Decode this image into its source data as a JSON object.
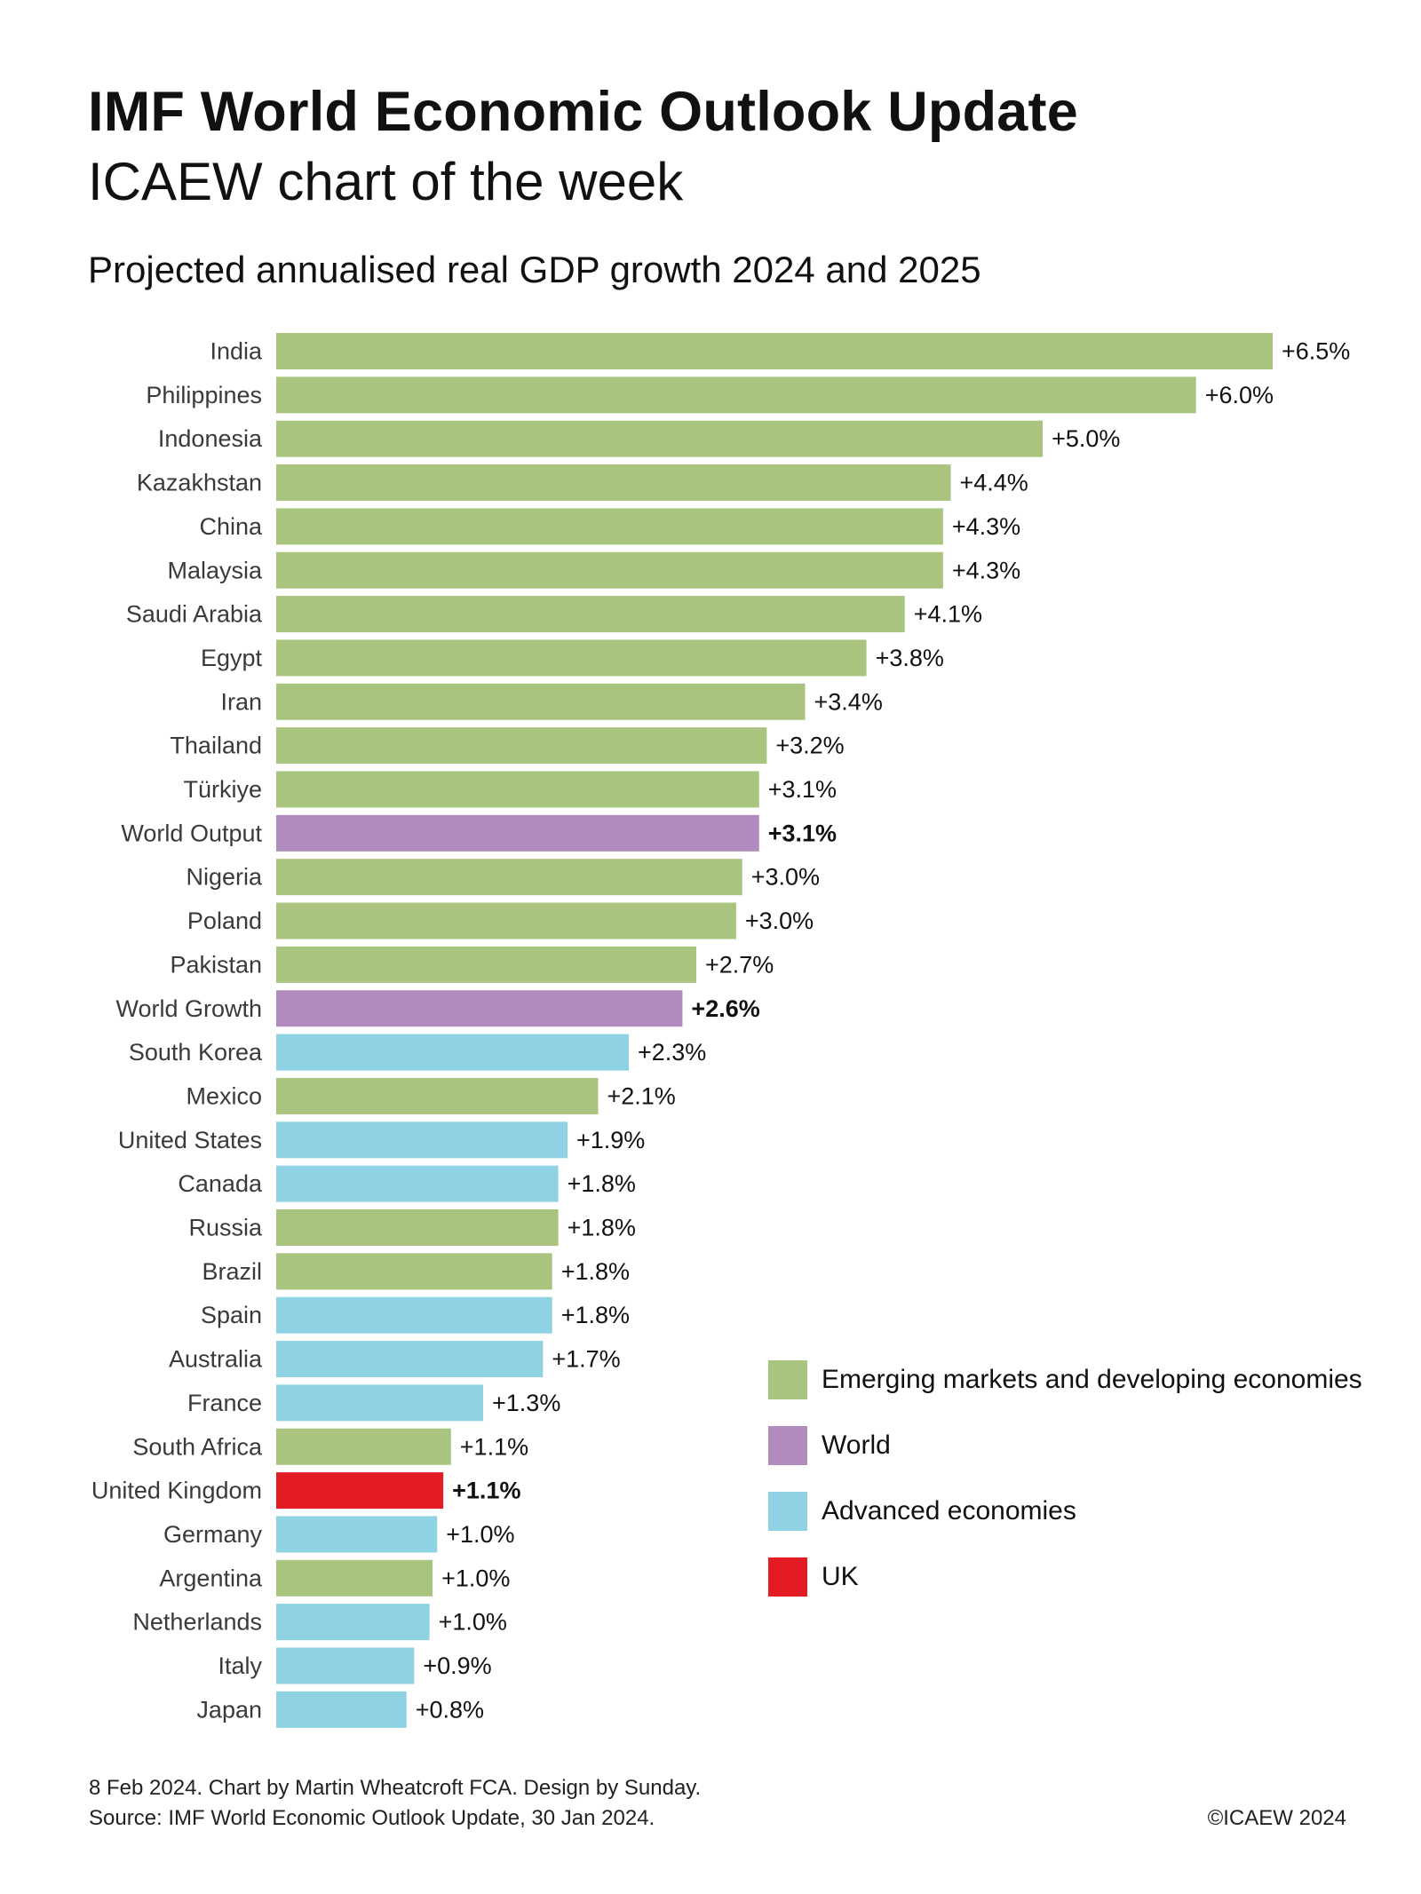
{
  "title": "IMF World Economic Outlook Update",
  "subtitle": "ICAEW chart of the week",
  "chart_heading": "Projected annualised real GDP growth 2024 and 2025",
  "colors": {
    "emerging": "#a9c47f",
    "world": "#b28bbe",
    "advanced": "#8fd2e4",
    "uk": "#e31b23"
  },
  "legend": [
    {
      "group": "emerging",
      "label": "Emerging markets and developing economies"
    },
    {
      "group": "world",
      "label": "World"
    },
    {
      "group": "advanced",
      "label": "Advanced economies"
    },
    {
      "group": "uk",
      "label": "UK"
    }
  ],
  "chart_data": {
    "type": "bar",
    "orientation": "horizontal",
    "title": "Projected annualised real GDP growth 2024 and 2025",
    "xlabel": "",
    "ylabel": "",
    "xlim": [
      0,
      6.5
    ],
    "grid": false,
    "legend_position": "bottom-right",
    "bars": [
      {
        "category": "India",
        "value": 6.5,
        "label": "+6.5%",
        "group": "emerging"
      },
      {
        "category": "Philippines",
        "value": 6.0,
        "label": "+6.0%",
        "group": "emerging"
      },
      {
        "category": "Indonesia",
        "value": 5.0,
        "label": "+5.0%",
        "group": "emerging"
      },
      {
        "category": "Kazakhstan",
        "value": 4.4,
        "label": "+4.4%",
        "group": "emerging"
      },
      {
        "category": "China",
        "value": 4.35,
        "label": "+4.3%",
        "group": "emerging"
      },
      {
        "category": "Malaysia",
        "value": 4.35,
        "label": "+4.3%",
        "group": "emerging"
      },
      {
        "category": "Saudi Arabia",
        "value": 4.1,
        "label": "+4.1%",
        "group": "emerging"
      },
      {
        "category": "Egypt",
        "value": 3.85,
        "label": "+3.8%",
        "group": "emerging"
      },
      {
        "category": "Iran",
        "value": 3.45,
        "label": "+3.4%",
        "group": "emerging"
      },
      {
        "category": "Thailand",
        "value": 3.2,
        "label": "+3.2%",
        "group": "emerging"
      },
      {
        "category": "Türkiye",
        "value": 3.15,
        "label": "+3.1%",
        "group": "emerging"
      },
      {
        "category": "World Output",
        "value": 3.15,
        "label": "+3.1%",
        "group": "world",
        "bold": true
      },
      {
        "category": "Nigeria",
        "value": 3.04,
        "label": "+3.0%",
        "group": "emerging"
      },
      {
        "category": "Poland",
        "value": 3.0,
        "label": "+3.0%",
        "group": "emerging"
      },
      {
        "category": "Pakistan",
        "value": 2.74,
        "label": "+2.7%",
        "group": "emerging"
      },
      {
        "category": "World Growth",
        "value": 2.65,
        "label": "+2.6%",
        "group": "world",
        "bold": true
      },
      {
        "category": "South Korea",
        "value": 2.3,
        "label": "+2.3%",
        "group": "advanced"
      },
      {
        "category": "Mexico",
        "value": 2.1,
        "label": "+2.1%",
        "group": "emerging"
      },
      {
        "category": "United States",
        "value": 1.9,
        "label": "+1.9%",
        "group": "advanced"
      },
      {
        "category": "Canada",
        "value": 1.84,
        "label": "+1.8%",
        "group": "advanced"
      },
      {
        "category": "Russia",
        "value": 1.84,
        "label": "+1.8%",
        "group": "emerging"
      },
      {
        "category": "Brazil",
        "value": 1.8,
        "label": "+1.8%",
        "group": "emerging"
      },
      {
        "category": "Spain",
        "value": 1.8,
        "label": "+1.8%",
        "group": "advanced"
      },
      {
        "category": "Australia",
        "value": 1.74,
        "label": "+1.7%",
        "group": "advanced"
      },
      {
        "category": "France",
        "value": 1.35,
        "label": "+1.3%",
        "group": "advanced"
      },
      {
        "category": "South Africa",
        "value": 1.14,
        "label": "+1.1%",
        "group": "emerging"
      },
      {
        "category": "United Kingdom",
        "value": 1.09,
        "label": "+1.1%",
        "group": "uk",
        "bold": true
      },
      {
        "category": "Germany",
        "value": 1.05,
        "label": "+1.0%",
        "group": "advanced"
      },
      {
        "category": "Argentina",
        "value": 1.02,
        "label": "+1.0%",
        "group": "emerging"
      },
      {
        "category": "Netherlands",
        "value": 1.0,
        "label": "+1.0%",
        "group": "advanced"
      },
      {
        "category": "Italy",
        "value": 0.9,
        "label": "+0.9%",
        "group": "advanced"
      },
      {
        "category": "Japan",
        "value": 0.85,
        "label": "+0.8%",
        "group": "advanced"
      }
    ]
  },
  "footer": {
    "line1": "8 Feb 2024.   Chart by Martin Wheatcroft FCA. Design by Sunday.",
    "line2": "Source: IMF World Economic Outlook Update, 30 Jan 2024.",
    "copyright": "©ICAEW 2024"
  }
}
